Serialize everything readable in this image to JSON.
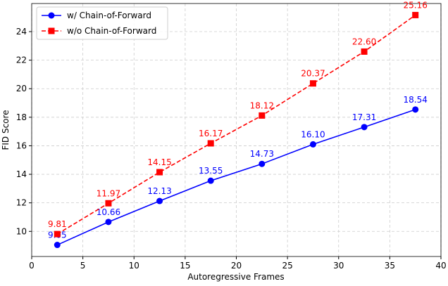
{
  "chart_data": {
    "type": "line",
    "x_label": "Autoregressive Frames",
    "y_label": "FID Score",
    "x": [
      2.5,
      7.5,
      12.5,
      17.5,
      22.5,
      27.5,
      32.5,
      37.5
    ],
    "series": [
      {
        "name": "w/ Chain-of-Forward",
        "color": "#0000ff",
        "marker": "circle",
        "dash": false,
        "values": [
          9.05,
          10.66,
          12.13,
          13.55,
          14.73,
          16.1,
          17.31,
          18.54
        ],
        "value_labels": [
          "9.05",
          "10.66",
          "12.13",
          "13.55",
          "14.73",
          "16.10",
          "17.31",
          "18.54"
        ]
      },
      {
        "name": "w/o Chain-of-Forward",
        "color": "#ff0000",
        "marker": "square",
        "dash": true,
        "values": [
          9.81,
          11.97,
          14.15,
          16.17,
          18.12,
          20.37,
          22.6,
          25.16
        ],
        "value_labels": [
          "9.81",
          "11.97",
          "14.15",
          "16.17",
          "18.12",
          "20.37",
          "22.60",
          "25.16"
        ]
      }
    ],
    "xlim": [
      0,
      40
    ],
    "xticks": [
      0,
      5,
      10,
      15,
      20,
      25,
      30,
      35,
      40
    ],
    "ylim": [
      8.24,
      25.97
    ],
    "yticks": [
      10,
      12,
      14,
      16,
      18,
      20,
      22,
      24
    ],
    "grid": true,
    "legend": "upper left"
  }
}
